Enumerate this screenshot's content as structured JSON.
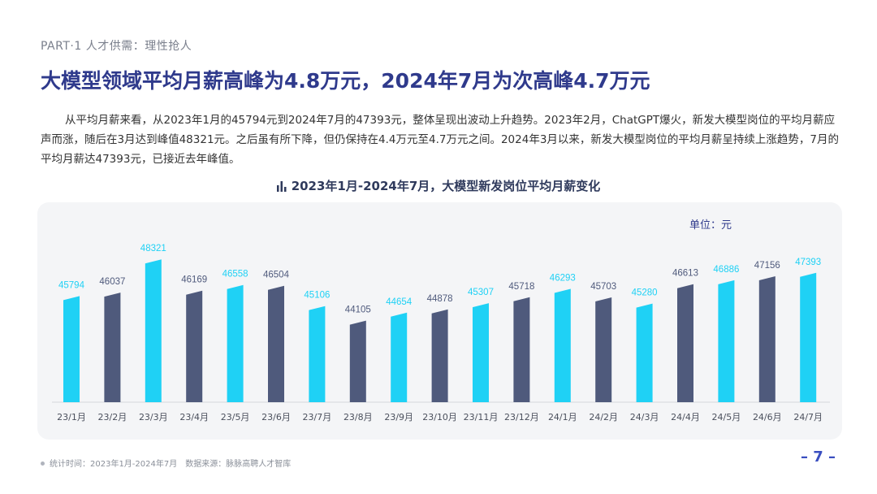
{
  "header": {
    "section_label": "PART·1  人才供需：理性抢人",
    "headline": "大模型领域平均月薪高峰为4.8万元，2024年7月为次高峰4.7万元",
    "intro": "从平均月薪来看，从2023年1月的45794元到2024年7月的47393元，整体呈现出波动上升趋势。2023年2月，ChatGPT爆火，新发大模型岗位的平均月薪应声而涨，随后在3月达到峰值48321元。之后虽有所下降，但仍保持在4.4万元至4.7万元之间。2024年3月以来，新发大模型岗位的平均月薪呈持续上涨趋势，7月的平均月薪达47393元，已接近去年峰值。"
  },
  "chart_data": {
    "type": "bar",
    "title": "2023年1月-2024年7月，大模型新发岗位平均月薪变化",
    "unit_label": "单位：元",
    "categories": [
      "23/1月",
      "23/2月",
      "23/3月",
      "23/4月",
      "23/5月",
      "23/6月",
      "23/7月",
      "23/8月",
      "23/9月",
      "23/10月",
      "23/11月",
      "23/12月",
      "24/1月",
      "24/2月",
      "24/3月",
      "24/4月",
      "24/5月",
      "24/6月",
      "24/7月"
    ],
    "values": [
      45794,
      46037,
      48321,
      46169,
      46558,
      46504,
      45106,
      44105,
      44654,
      44878,
      45307,
      45718,
      46293,
      45703,
      45280,
      46613,
      46886,
      47156,
      47393
    ],
    "bar_colors": [
      "#1fd1f5",
      "#4f5a7c",
      "#1fd1f5",
      "#4f5a7c",
      "#1fd1f5",
      "#4f5a7c",
      "#1fd1f5",
      "#4f5a7c",
      "#1fd1f5",
      "#4f5a7c",
      "#1fd1f5",
      "#4f5a7c",
      "#1fd1f5",
      "#4f5a7c",
      "#1fd1f5",
      "#4f5a7c",
      "#1fd1f5",
      "#4f5a7c",
      "#1fd1f5"
    ],
    "ylim": [
      38500,
      49000
    ],
    "grid": false,
    "legend": "none"
  },
  "colors": {
    "accent_cyan": "#1fd1f5",
    "accent_navy": "#4f5a7c",
    "headline": "#2f3a8c",
    "panel_bg": "#f4f5f7"
  },
  "footer": {
    "stat_time": "统计时间：2023年1月-2024年7月",
    "source": "数据来源：脉脉高聘人才智库",
    "page_number": "– 7 –"
  }
}
